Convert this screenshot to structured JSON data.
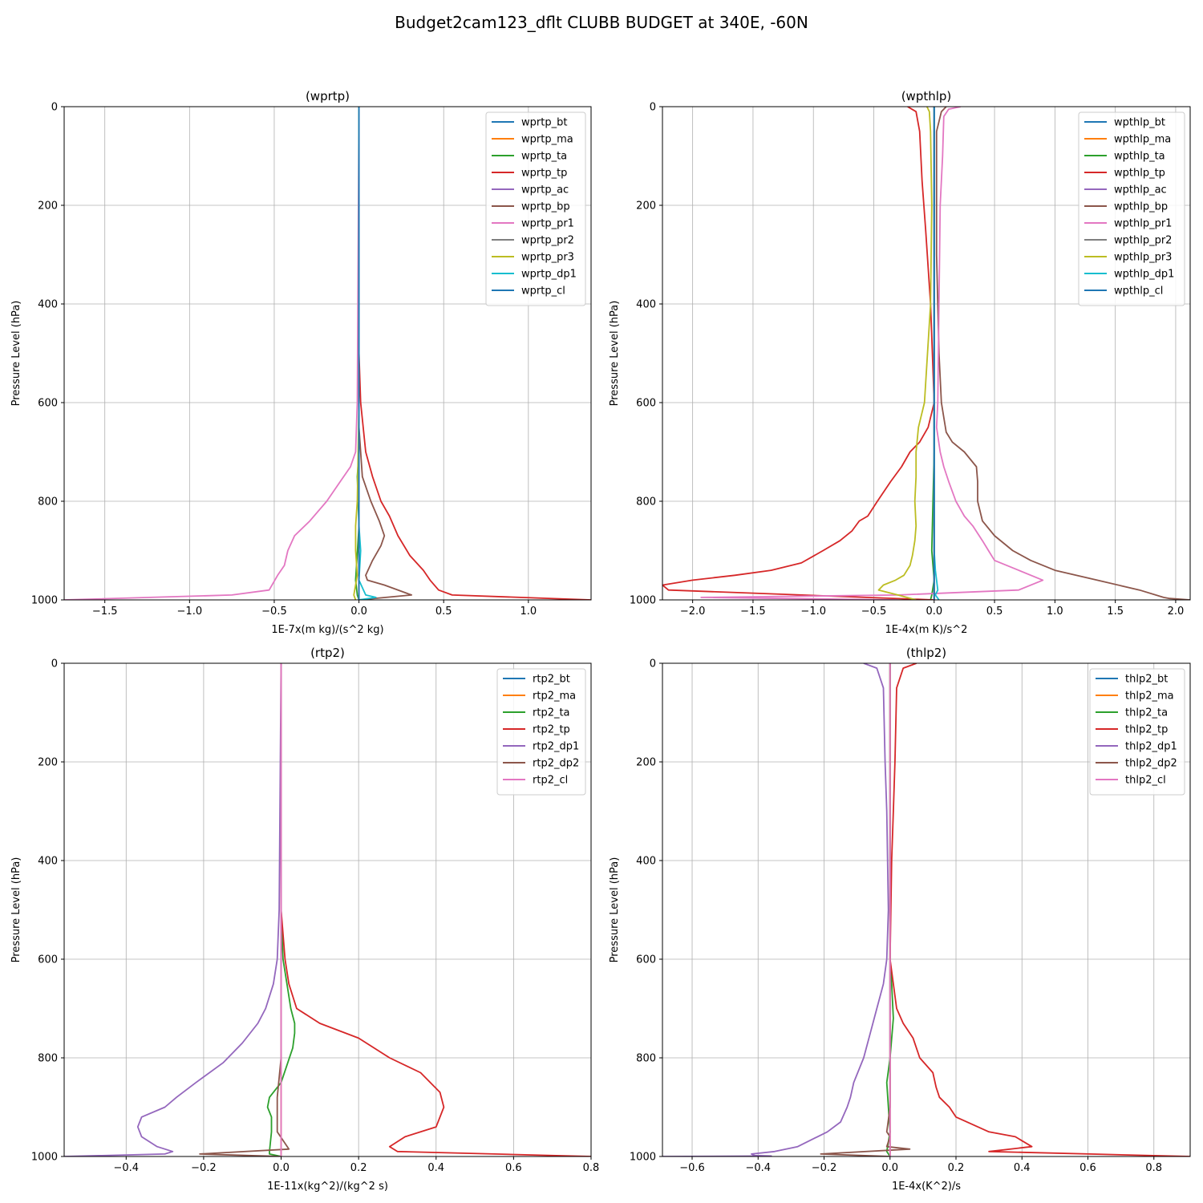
{
  "figure": {
    "title": "Budget2cam123_dflt CLUBB BUDGET at 340E, -60N"
  },
  "colors": {
    "C0": "#1f77b4",
    "C1": "#ff7f0e",
    "C2": "#2ca02c",
    "C3": "#d62728",
    "C4": "#9467bd",
    "C5": "#8c564b",
    "C6": "#e377c2",
    "C7": "#7f7f7f",
    "C8": "#bcbd22",
    "C9": "#17becf"
  },
  "chart_data": [
    {
      "type": "line",
      "title": "(wprtp)",
      "xlabel": "1E-7x(m kg)/(s^2 kg)",
      "ylabel": "Pressure Level (hPa)",
      "xlim": [
        -1.74,
        1.37
      ],
      "ylim": [
        1000,
        0
      ],
      "xticks": [
        -1.5,
        -1.0,
        -0.5,
        0.0,
        0.5,
        1.0
      ],
      "xtick_labels": [
        "−1.5",
        "−1.0",
        "−0.5",
        "0.0",
        "0.5",
        "1.0"
      ],
      "yticks": [
        0,
        200,
        400,
        600,
        800,
        1000
      ],
      "grid": true,
      "legend_position": "top-right",
      "series": [
        {
          "name": "wprtp_bt",
          "color": "C0",
          "x": [
            0,
            0
          ],
          "y": [
            0,
            1000
          ]
        },
        {
          "name": "wprtp_ma",
          "color": "C1",
          "x": [
            0,
            0
          ],
          "y": [
            0,
            1000
          ]
        },
        {
          "name": "wprtp_ta",
          "color": "C2",
          "x": [
            0,
            0,
            0,
            -0.01,
            0.0,
            -0.02,
            -0.01,
            0.0
          ],
          "y": [
            0,
            600,
            700,
            750,
            850,
            960,
            990,
            1000
          ]
        },
        {
          "name": "wprtp_tp",
          "color": "C3",
          "x": [
            0,
            0,
            0.01,
            0.04,
            0.08,
            0.13,
            0.18,
            0.23,
            0.3,
            0.38,
            0.42,
            0.47,
            0.55,
            1.37
          ],
          "y": [
            0,
            500,
            600,
            700,
            750,
            800,
            830,
            870,
            910,
            940,
            960,
            980,
            990,
            1000
          ]
        },
        {
          "name": "wprtp_ac",
          "color": "C4",
          "x": [
            0,
            0
          ],
          "y": [
            0,
            1000
          ]
        },
        {
          "name": "wprtp_bp",
          "color": "C5",
          "x": [
            0,
            0,
            0,
            0.02,
            0.07,
            0.12,
            0.15,
            0.13,
            0.08,
            0.04,
            0.05,
            0.15,
            0.31,
            0.0
          ],
          "y": [
            0,
            500,
            650,
            750,
            800,
            840,
            870,
            890,
            920,
            950,
            960,
            970,
            990,
            1000
          ]
        },
        {
          "name": "wprtp_pr1",
          "color": "C6",
          "x": [
            0,
            -0.01,
            -0.02,
            -0.05,
            -0.11,
            -0.19,
            -0.29,
            -0.38,
            -0.42,
            -0.44,
            -0.48,
            -0.53,
            -0.75,
            -1.74
          ],
          "y": [
            0,
            600,
            700,
            730,
            760,
            800,
            840,
            870,
            900,
            930,
            950,
            980,
            990,
            1000
          ]
        },
        {
          "name": "wprtp_pr2",
          "color": "C7",
          "x": [
            0,
            0
          ],
          "y": [
            0,
            1000
          ]
        },
        {
          "name": "wprtp_pr3",
          "color": "C8",
          "x": [
            0,
            0,
            -0.01,
            -0.02,
            -0.02,
            -0.01,
            -0.03,
            -0.02
          ],
          "y": [
            0,
            600,
            800,
            850,
            900,
            950,
            990,
            1000
          ]
        },
        {
          "name": "wprtp_dp1",
          "color": "C9",
          "x": [
            0,
            0,
            0.0,
            0.01,
            0.0,
            0.04,
            0.1,
            0.0
          ],
          "y": [
            0,
            600,
            850,
            900,
            960,
            990,
            995,
            1000
          ]
        },
        {
          "name": "wprtp_cl",
          "color": "C0",
          "x": [
            0,
            0
          ],
          "y": [
            0,
            1000
          ]
        }
      ]
    },
    {
      "type": "line",
      "title": "(wpthlp)",
      "xlabel": "1E-4x(m K)/s^2",
      "ylabel": "Pressure Level (hPa)",
      "xlim": [
        -2.25,
        2.12
      ],
      "ylim": [
        1000,
        0
      ],
      "xticks": [
        -2.0,
        -1.5,
        -1.0,
        -0.5,
        0.0,
        0.5,
        1.0,
        1.5,
        2.0
      ],
      "xtick_labels": [
        "−2.0",
        "−1.5",
        "−1.0",
        "−0.5",
        "0.0",
        "0.5",
        "1.0",
        "1.5",
        "2.0"
      ],
      "yticks": [
        0,
        200,
        400,
        600,
        800,
        1000
      ],
      "grid": true,
      "legend_position": "top-right",
      "series": [
        {
          "name": "wpthlp_bt",
          "color": "C0",
          "x": [
            0,
            0
          ],
          "y": [
            0,
            1000
          ]
        },
        {
          "name": "wpthlp_ma",
          "color": "C1",
          "x": [
            0,
            0
          ],
          "y": [
            0,
            1000
          ]
        },
        {
          "name": "wpthlp_ta",
          "color": "C2",
          "x": [
            0,
            0,
            -0.02,
            0.0,
            -0.02,
            -0.03
          ],
          "y": [
            0,
            700,
            900,
            960,
            990,
            1000
          ]
        },
        {
          "name": "wpthlp_tp",
          "color": "C3",
          "x": [
            -0.22,
            -0.15,
            -0.12,
            -0.1,
            -0.07,
            -0.03,
            0,
            -0.05,
            -0.12,
            -0.2,
            -0.27,
            -0.36,
            -0.47,
            -0.55,
            -0.62,
            -0.68,
            -0.78,
            -0.92,
            -1.1,
            -1.35,
            -1.65,
            -2.0,
            -2.25,
            -2.2,
            0.0
          ],
          "y": [
            0,
            10,
            50,
            150,
            250,
            400,
            600,
            650,
            680,
            700,
            730,
            760,
            800,
            830,
            840,
            860,
            880,
            900,
            925,
            940,
            950,
            960,
            970,
            980,
            1000
          ]
        },
        {
          "name": "wpthlp_ac",
          "color": "C4",
          "x": [
            0,
            0
          ],
          "y": [
            0,
            1000
          ]
        },
        {
          "name": "wpthlp_bp",
          "color": "C5",
          "x": [
            0.1,
            0.06,
            0.02,
            0.02,
            0.04,
            0.06,
            0.08,
            0.1,
            0.15,
            0.25,
            0.35,
            0.36,
            0.36,
            0.4,
            0.5,
            0.65,
            0.8,
            1.0,
            1.35,
            1.7,
            1.9,
            1.95,
            2.12
          ],
          "y": [
            0,
            10,
            50,
            300,
            500,
            600,
            630,
            660,
            680,
            700,
            730,
            760,
            800,
            840,
            870,
            900,
            920,
            940,
            960,
            980,
            995,
            997,
            1000
          ]
        },
        {
          "name": "wpthlp_pr1",
          "color": "C6",
          "x": [
            0.22,
            0.12,
            0.08,
            0.07,
            0.05,
            0.04,
            0.03,
            0.02,
            0.05,
            0.08,
            0.12,
            0.18,
            0.25,
            0.32,
            0.4,
            0.45,
            0.5,
            0.7,
            0.9,
            0.7,
            -0.3,
            -1.93,
            -0.3
          ],
          "y": [
            0,
            5,
            20,
            100,
            200,
            400,
            600,
            650,
            700,
            730,
            760,
            800,
            830,
            850,
            880,
            900,
            920,
            940,
            960,
            980,
            990,
            995,
            1000
          ]
        },
        {
          "name": "wpthlp_pr2",
          "color": "C7",
          "x": [
            0,
            0
          ],
          "y": [
            0,
            1000
          ]
        },
        {
          "name": "wpthlp_pr3",
          "color": "C8",
          "x": [
            -0.06,
            -0.04,
            -0.03,
            -0.02,
            -0.03,
            -0.08,
            -0.13,
            -0.15,
            -0.15,
            -0.16,
            -0.15,
            -0.16,
            -0.18,
            -0.2,
            -0.25,
            -0.32,
            -0.42,
            -0.46,
            -0.3,
            -0.15
          ],
          "y": [
            0,
            10,
            50,
            200,
            400,
            600,
            650,
            700,
            750,
            800,
            850,
            880,
            910,
            930,
            950,
            960,
            970,
            980,
            990,
            1000
          ]
        },
        {
          "name": "wpthlp_dp1",
          "color": "C9",
          "x": [
            0,
            0,
            0.01,
            0.02,
            0.03,
            0.01,
            0.04
          ],
          "y": [
            0,
            900,
            940,
            960,
            980,
            990,
            1000
          ]
        },
        {
          "name": "wpthlp_cl",
          "color": "C0",
          "x": [
            0,
            0
          ],
          "y": [
            0,
            1000
          ]
        }
      ]
    },
    {
      "type": "line",
      "title": "(rtp2)",
      "xlabel": "1E-11x(kg^2)/(kg^2 s)",
      "ylabel": "Pressure Level (hPa)",
      "xlim": [
        -0.56,
        0.8
      ],
      "ylim": [
        1000,
        0
      ],
      "xticks": [
        -0.4,
        -0.2,
        0.0,
        0.2,
        0.4,
        0.6,
        0.8
      ],
      "xtick_labels": [
        "−0.4",
        "−0.2",
        "0.0",
        "0.2",
        "0.4",
        "0.6",
        "0.8"
      ],
      "yticks": [
        0,
        200,
        400,
        600,
        800,
        1000
      ],
      "grid": true,
      "legend_position": "top-right",
      "series": [
        {
          "name": "rtp2_bt",
          "color": "C0",
          "x": [
            0,
            0
          ],
          "y": [
            0,
            1000
          ]
        },
        {
          "name": "rtp2_ma",
          "color": "C1",
          "x": [
            0,
            0
          ],
          "y": [
            0,
            1000
          ]
        },
        {
          "name": "rtp2_ta",
          "color": "C2",
          "x": [
            0,
            0,
            0.005,
            0.015,
            0.025,
            0.035,
            0.035,
            0.03,
            0.0,
            -0.03,
            -0.035,
            -0.025,
            -0.025,
            -0.03,
            -0.03,
            0.0
          ],
          "y": [
            0,
            500,
            600,
            650,
            700,
            730,
            750,
            780,
            850,
            880,
            900,
            920,
            950,
            990,
            995,
            1000
          ]
        },
        {
          "name": "rtp2_tp",
          "color": "C3",
          "x": [
            0,
            0,
            0.01,
            0.02,
            0.04,
            0.1,
            0.2,
            0.28,
            0.36,
            0.41,
            0.42,
            0.4,
            0.32,
            0.28,
            0.3,
            0.8
          ],
          "y": [
            0,
            500,
            600,
            650,
            700,
            730,
            760,
            800,
            830,
            870,
            900,
            940,
            960,
            980,
            990,
            1000
          ]
        },
        {
          "name": "rtp2_dp1",
          "color": "C4",
          "x": [
            0,
            -0.005,
            -0.01,
            -0.02,
            -0.04,
            -0.06,
            -0.1,
            -0.15,
            -0.22,
            -0.27,
            -0.3,
            -0.36,
            -0.37,
            -0.36,
            -0.32,
            -0.28,
            -0.3,
            -0.56
          ],
          "y": [
            0,
            500,
            600,
            650,
            700,
            730,
            770,
            810,
            850,
            880,
            900,
            920,
            940,
            960,
            980,
            990,
            995,
            1000
          ]
        },
        {
          "name": "rtp2_dp2",
          "color": "C5",
          "x": [
            0,
            0,
            -0.01,
            -0.01,
            0.02,
            -0.21,
            0.0
          ],
          "y": [
            0,
            800,
            880,
            950,
            985,
            995,
            1000
          ]
        },
        {
          "name": "rtp2_cl",
          "color": "C6",
          "x": [
            0,
            0
          ],
          "y": [
            0,
            1000
          ]
        }
      ]
    },
    {
      "type": "line",
      "title": "(thlp2)",
      "xlabel": "1E-4x(K^2)/s",
      "ylabel": "Pressure Level (hPa)",
      "xlim": [
        -0.69,
        0.91
      ],
      "ylim": [
        1000,
        0
      ],
      "xticks": [
        -0.6,
        -0.4,
        -0.2,
        0.0,
        0.2,
        0.4,
        0.6,
        0.8
      ],
      "xtick_labels": [
        "−0.6",
        "−0.4",
        "−0.2",
        "0.0",
        "0.2",
        "0.4",
        "0.6",
        "0.8"
      ],
      "yticks": [
        0,
        200,
        400,
        600,
        800,
        1000
      ],
      "grid": true,
      "legend_position": "top-right",
      "series": [
        {
          "name": "thlp2_bt",
          "color": "C0",
          "x": [
            0,
            0
          ],
          "y": [
            0,
            1000
          ]
        },
        {
          "name": "thlp2_ma",
          "color": "C1",
          "x": [
            0,
            0
          ],
          "y": [
            0,
            1000
          ]
        },
        {
          "name": "thlp2_ta",
          "color": "C2",
          "x": [
            0,
            0,
            0.005,
            0.01,
            0.0,
            -0.01,
            -0.005,
            0.0,
            -0.01,
            0.0
          ],
          "y": [
            0,
            600,
            650,
            720,
            800,
            850,
            900,
            950,
            990,
            1000
          ]
        },
        {
          "name": "thlp2_tp",
          "color": "C3",
          "x": [
            0.08,
            0.04,
            0.02,
            0.015,
            0.01,
            0.005,
            0,
            0.01,
            0.02,
            0.04,
            0.07,
            0.09,
            0.13,
            0.14,
            0.15,
            0.18,
            0.2,
            0.3,
            0.38,
            0.43,
            0.3,
            0.91
          ],
          "y": [
            0,
            10,
            50,
            200,
            300,
            400,
            600,
            650,
            700,
            730,
            760,
            800,
            830,
            860,
            880,
            900,
            920,
            950,
            960,
            980,
            990,
            1000
          ]
        },
        {
          "name": "thlp2_dp1",
          "color": "C4",
          "x": [
            -0.08,
            -0.04,
            -0.02,
            -0.015,
            -0.01,
            -0.005,
            -0.01,
            -0.02,
            -0.04,
            -0.06,
            -0.08,
            -0.11,
            -0.12,
            -0.13,
            -0.15,
            -0.19,
            -0.22,
            -0.28,
            -0.35,
            -0.42,
            -0.41,
            -0.36,
            -0.69
          ],
          "y": [
            0,
            10,
            50,
            200,
            300,
            500,
            600,
            650,
            700,
            750,
            800,
            850,
            880,
            900,
            930,
            950,
            960,
            980,
            990,
            995,
            998,
            999,
            1000
          ]
        },
        {
          "name": "thlp2_dp2",
          "color": "C5",
          "x": [
            0,
            0,
            -0.01,
            0.0,
            -0.01,
            0.06,
            -0.21,
            0.0
          ],
          "y": [
            0,
            900,
            950,
            960,
            980,
            985,
            995,
            1000
          ]
        },
        {
          "name": "thlp2_cl",
          "color": "C6",
          "x": [
            0,
            0
          ],
          "y": [
            0,
            1000
          ]
        }
      ]
    }
  ]
}
